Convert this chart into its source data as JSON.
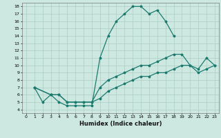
{
  "title": "",
  "xlabel": "Humidex (Indice chaleur)",
  "bg_color": "#cce8e0",
  "line_color": "#1a7a6e",
  "grid_color": "#aaccc4",
  "xlim": [
    -0.5,
    23.5
  ],
  "ylim": [
    3.5,
    18.5
  ],
  "xticks": [
    0,
    1,
    2,
    3,
    4,
    5,
    6,
    7,
    8,
    9,
    10,
    11,
    12,
    13,
    14,
    15,
    16,
    17,
    18,
    19,
    20,
    21,
    22,
    23
  ],
  "yticks": [
    4,
    5,
    6,
    7,
    8,
    9,
    10,
    11,
    12,
    13,
    14,
    15,
    16,
    17,
    18
  ],
  "curves": [
    {
      "x": [
        1,
        2,
        3,
        4,
        5,
        6,
        7,
        8,
        9,
        10,
        11,
        12,
        13,
        14,
        15,
        16,
        17,
        18
      ],
      "y": [
        7,
        5,
        6,
        5,
        4.5,
        4.5,
        4.5,
        4.5,
        11,
        14,
        16,
        17,
        18,
        18,
        17,
        17.5,
        16,
        14
      ]
    },
    {
      "x": [
        1,
        3,
        4,
        5,
        6,
        7,
        8,
        9,
        10,
        11,
        12,
        13,
        14,
        15,
        16,
        17,
        18,
        19,
        20,
        21,
        22,
        23
      ],
      "y": [
        7,
        6,
        6,
        5,
        5,
        5,
        5,
        7,
        8,
        8.5,
        9,
        9.5,
        10,
        10,
        10.5,
        11,
        11.5,
        11.5,
        10,
        9.5,
        11,
        10
      ]
    },
    {
      "x": [
        1,
        3,
        4,
        5,
        6,
        7,
        8,
        9,
        10,
        11,
        12,
        13,
        14,
        15,
        16,
        17,
        18,
        19,
        20,
        21,
        22,
        23
      ],
      "y": [
        7,
        6,
        6,
        5,
        5,
        5,
        5,
        5.5,
        6.5,
        7,
        7.5,
        8,
        8.5,
        8.5,
        9,
        9,
        9.5,
        10,
        10,
        9,
        9.5,
        10
      ]
    }
  ]
}
